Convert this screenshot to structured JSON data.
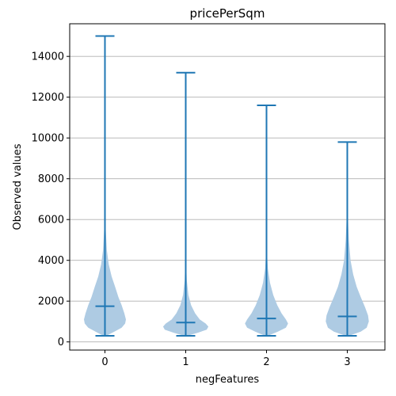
{
  "chart_data": {
    "type": "violin",
    "title": "pricePerSqm",
    "xlabel": "negFeatures",
    "ylabel": "Observed values",
    "categories": [
      "0",
      "1",
      "2",
      "3"
    ],
    "yticks": [
      0,
      2000,
      4000,
      6000,
      8000,
      10000,
      12000,
      14000
    ],
    "ytick_labels": [
      "0",
      "2000",
      "4000",
      "6000",
      "8000",
      "10000",
      "12000",
      "14000"
    ],
    "ylim": [
      -400,
      15600
    ],
    "grid": "y",
    "colors": {
      "body": "#aecbe3",
      "lines": "#1f77b4",
      "grid": "#b0b0b0"
    },
    "series": [
      {
        "category": "0",
        "min": 300,
        "median": 1750,
        "max": 15000,
        "density": [
          [
            300,
            0.05
          ],
          [
            500,
            0.35
          ],
          [
            700,
            0.62
          ],
          [
            900,
            0.75
          ],
          [
            1100,
            0.78
          ],
          [
            1400,
            0.72
          ],
          [
            1800,
            0.62
          ],
          [
            2200,
            0.5
          ],
          [
            2700,
            0.38
          ],
          [
            3200,
            0.25
          ],
          [
            3800,
            0.14
          ],
          [
            4500,
            0.07
          ],
          [
            5500,
            0.03
          ],
          [
            6500,
            0.012
          ],
          [
            8000,
            0.004
          ],
          [
            10000,
            0.002
          ],
          [
            15000,
            0.0
          ]
        ]
      },
      {
        "category": "1",
        "min": 300,
        "median": 950,
        "max": 13200,
        "density": [
          [
            300,
            0.05
          ],
          [
            450,
            0.45
          ],
          [
            600,
            0.78
          ],
          [
            750,
            0.84
          ],
          [
            900,
            0.74
          ],
          [
            1100,
            0.52
          ],
          [
            1400,
            0.35
          ],
          [
            1800,
            0.2
          ],
          [
            2300,
            0.1
          ],
          [
            3000,
            0.04
          ],
          [
            4000,
            0.012
          ],
          [
            6000,
            0.004
          ],
          [
            9000,
            0.001
          ],
          [
            13200,
            0.0
          ]
        ]
      },
      {
        "category": "2",
        "min": 300,
        "median": 1150,
        "max": 11600,
        "density": [
          [
            300,
            0.05
          ],
          [
            500,
            0.42
          ],
          [
            700,
            0.72
          ],
          [
            900,
            0.8
          ],
          [
            1100,
            0.72
          ],
          [
            1400,
            0.56
          ],
          [
            1800,
            0.4
          ],
          [
            2300,
            0.25
          ],
          [
            2900,
            0.13
          ],
          [
            3600,
            0.05
          ],
          [
            4500,
            0.015
          ],
          [
            6000,
            0.004
          ],
          [
            9000,
            0.001
          ],
          [
            11600,
            0.0
          ]
        ]
      },
      {
        "category": "3",
        "min": 300,
        "median": 1250,
        "max": 9800,
        "density": [
          [
            300,
            0.06
          ],
          [
            500,
            0.5
          ],
          [
            700,
            0.72
          ],
          [
            1000,
            0.8
          ],
          [
            1300,
            0.77
          ],
          [
            1700,
            0.66
          ],
          [
            2200,
            0.5
          ],
          [
            2700,
            0.35
          ],
          [
            3300,
            0.22
          ],
          [
            4000,
            0.12
          ],
          [
            5000,
            0.06
          ],
          [
            6000,
            0.025
          ],
          [
            7500,
            0.01
          ],
          [
            9800,
            0.0
          ]
        ]
      }
    ]
  }
}
